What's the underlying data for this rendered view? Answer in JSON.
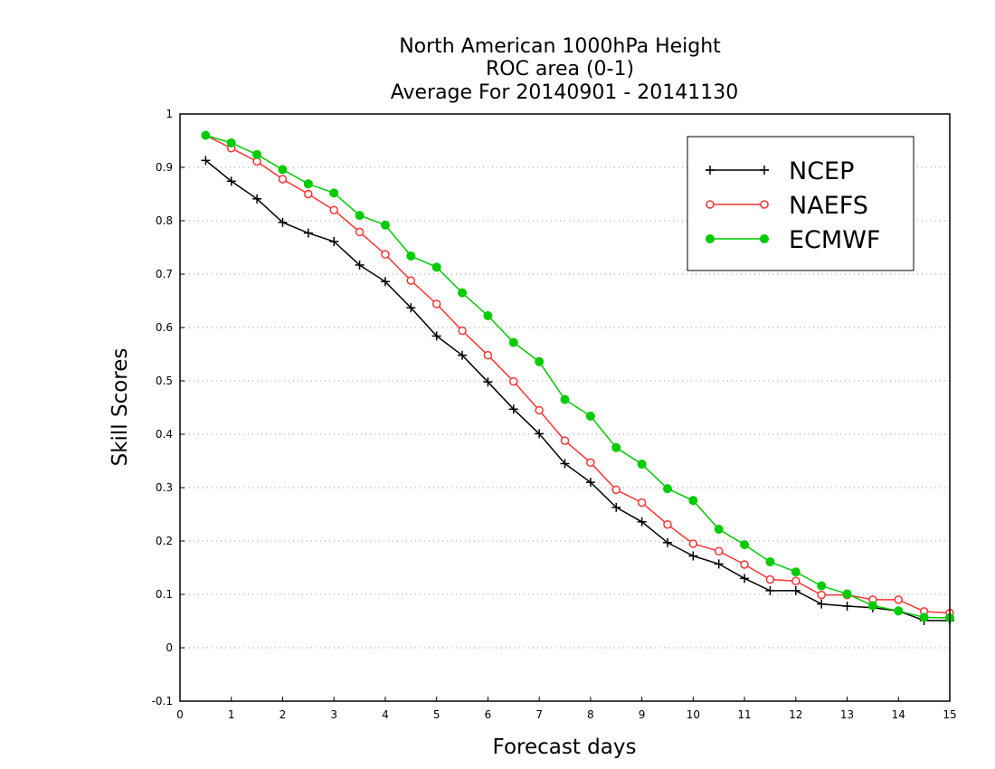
{
  "chart_data": {
    "type": "line",
    "title": [
      "North American 1000hPa Height",
      "ROC area (0-1)",
      "Average For 20140901 - 20141130"
    ],
    "xlabel": "Forecast days",
    "ylabel": "Skill Scores",
    "xlim": [
      0,
      15
    ],
    "ylim": [
      -0.1,
      1
    ],
    "xticks": [
      0,
      1,
      2,
      3,
      4,
      5,
      6,
      7,
      8,
      9,
      10,
      11,
      12,
      13,
      14,
      15
    ],
    "yticks": [
      -0.1,
      0,
      0.1,
      0.2,
      0.3,
      0.4,
      0.5,
      0.6,
      0.7,
      0.8,
      0.9,
      1
    ],
    "ytick_labels": [
      "-0.1",
      "0",
      "0.1",
      "0.2",
      "0.3",
      "0.4",
      "0.5",
      "0.6",
      "0.7",
      "0.8",
      "0.9",
      "1"
    ],
    "grid": "horizontal dotted",
    "legend_position": "top-right",
    "x": [
      0.5,
      1,
      1.5,
      2,
      2.5,
      3,
      3.5,
      4,
      4.5,
      5,
      5.5,
      6,
      6.5,
      7,
      7.5,
      8,
      8.5,
      9,
      9.5,
      10,
      10.5,
      11,
      11.5,
      12,
      12.5,
      13,
      13.5,
      14,
      14.5,
      15
    ],
    "series": [
      {
        "name": "NCEP",
        "color": "#000000",
        "marker": "plus",
        "values": [
          0.913,
          0.874,
          0.841,
          0.797,
          0.777,
          0.761,
          0.717,
          0.686,
          0.637,
          0.584,
          0.548,
          0.498,
          0.447,
          0.401,
          0.345,
          0.31,
          0.263,
          0.236,
          0.197,
          0.172,
          0.157,
          0.13,
          0.107,
          0.107,
          0.082,
          0.078,
          0.075,
          0.069,
          0.051,
          0.051
        ]
      },
      {
        "name": "NAEFS",
        "color": "#ff3333",
        "marker": "open-circle",
        "values": [
          0.96,
          0.936,
          0.911,
          0.878,
          0.85,
          0.82,
          0.779,
          0.737,
          0.688,
          0.644,
          0.594,
          0.548,
          0.499,
          0.445,
          0.388,
          0.347,
          0.296,
          0.272,
          0.231,
          0.195,
          0.181,
          0.156,
          0.128,
          0.125,
          0.099,
          0.099,
          0.09,
          0.09,
          0.068,
          0.065
        ]
      },
      {
        "name": "ECMWF",
        "color": "#00cc00",
        "marker": "filled-circle",
        "values": [
          0.96,
          0.946,
          0.924,
          0.896,
          0.869,
          0.852,
          0.81,
          0.792,
          0.734,
          0.713,
          0.665,
          0.622,
          0.572,
          0.536,
          0.465,
          0.434,
          0.375,
          0.344,
          0.298,
          0.276,
          0.222,
          0.193,
          0.161,
          0.142,
          0.116,
          0.101,
          0.079,
          0.069,
          0.057,
          0.056
        ]
      }
    ]
  }
}
